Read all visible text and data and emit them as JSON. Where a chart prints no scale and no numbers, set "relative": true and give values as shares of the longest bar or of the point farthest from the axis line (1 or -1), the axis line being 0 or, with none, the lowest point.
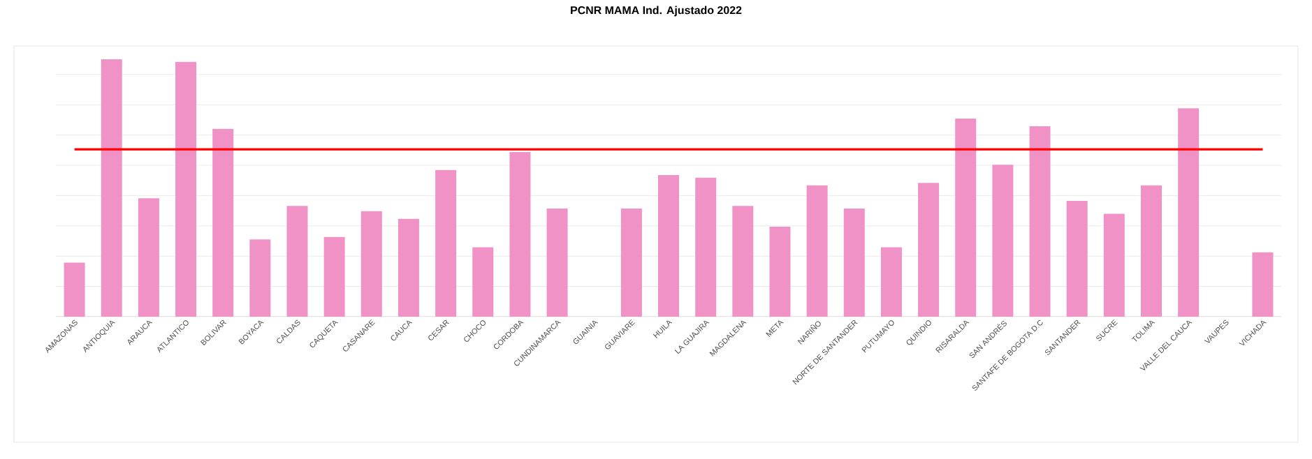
{
  "chart_data": {
    "type": "bar",
    "title": "PCNR MAMA Ind. Ajustado 2022",
    "relative": true,
    "color": "#f192c6",
    "grid": "y",
    "categories": [
      "AMAZONAS",
      "ANTIOQUIA",
      "ARAUCA",
      "ATLANTICO",
      "BOLIVAR",
      "BOYACA",
      "CALDAS",
      "CAQUETA",
      "CASANARE",
      "CAUCA",
      "CESAR",
      "CHOCO",
      "CORDOBA",
      "CUNDINAMARCA",
      "GUAINIA",
      "GUAVIARE",
      "HUILA",
      "LA GUAJIRA",
      "MAGDALENA",
      "META",
      "NARIÑO",
      "NORTE DE SANTANDER",
      "PUTUMAYO",
      "QUINDIO",
      "RISARALDA",
      "SAN ANDRÉS",
      "SANTAFE DE BOGOTA D.C",
      "SANTANDER",
      "SUCRE",
      "TOLIMA",
      "VALLE DEL CAUCA",
      "VAUPES",
      "VICHADA"
    ],
    "values": [
      0.21,
      1.0,
      0.46,
      0.99,
      0.73,
      0.3,
      0.43,
      0.31,
      0.41,
      0.38,
      0.57,
      0.27,
      0.64,
      0.42,
      0,
      0.42,
      0.55,
      0.54,
      0.43,
      0.35,
      0.51,
      0.42,
      0.27,
      0.52,
      0.77,
      0.59,
      0.74,
      0.45,
      0.4,
      0.51,
      0.81,
      0,
      0.25
    ],
    "ref_lines": [
      {
        "axis": "y",
        "value": 0.65,
        "color": "#ff0000"
      }
    ]
  }
}
